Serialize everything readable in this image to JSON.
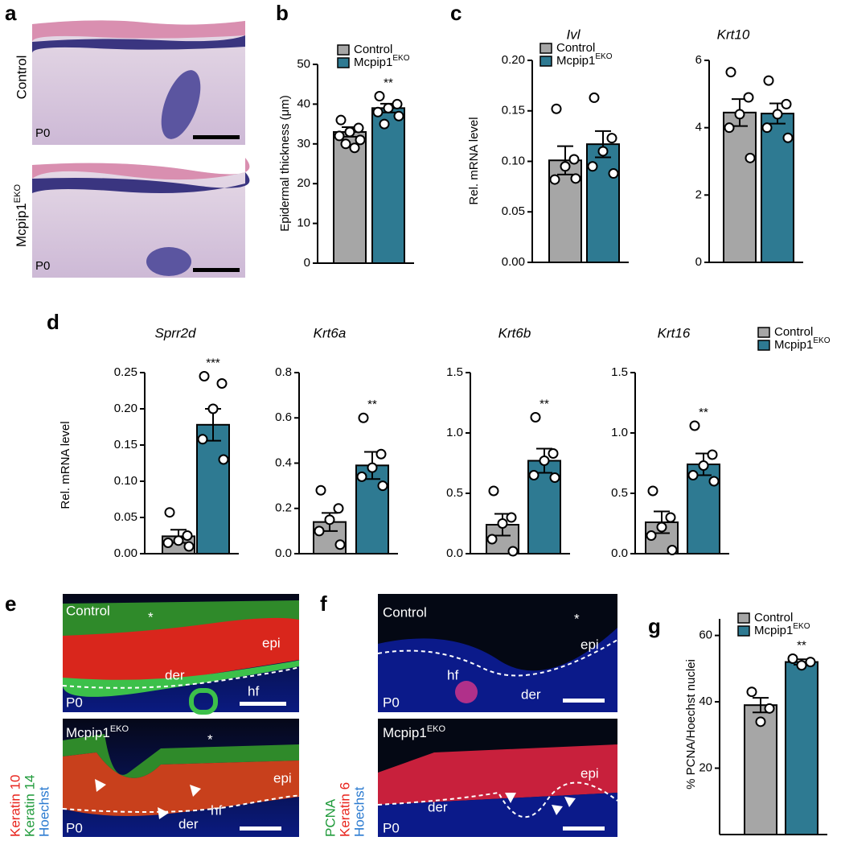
{
  "chart_data": [
    {
      "type": "bar",
      "panel": "b",
      "ylabel": "Epidermal thickness (μm)",
      "ylim": [
        0,
        50
      ],
      "yticks": [
        0,
        10,
        20,
        30,
        40,
        50
      ],
      "legend": true,
      "annotation": "**",
      "series": [
        {
          "name": "Control",
          "color": "#a6a6a6",
          "values": [
            33
          ],
          "errors": [
            1.2
          ],
          "points": [
            36,
            34,
            33,
            32,
            31,
            30,
            29
          ]
        },
        {
          "name": "Mcpip1",
          "superscript": "EKO",
          "color": "#2e7a92",
          "values": [
            39
          ],
          "errors": [
            1.1
          ],
          "points": [
            42,
            40,
            39,
            38,
            37,
            35
          ]
        }
      ]
    },
    {
      "type": "bar",
      "panel": "c",
      "title": "Ivl",
      "ylabel": "Rel. mRNA level",
      "ylim": [
        0,
        0.2
      ],
      "yticks": [
        {
          "value": 0,
          "label": "0.00"
        },
        0.05,
        {
          "value": 0.1,
          "label": "0.10"
        },
        0.15,
        {
          "value": 0.2,
          "label": "0.20"
        }
      ],
      "legend": true,
      "series": [
        {
          "name": "Control",
          "color": "#a6a6a6",
          "values": [
            0.101
          ],
          "errors": [
            0.014
          ],
          "points": [
            0.152,
            0.102,
            0.095,
            0.082,
            0.083
          ]
        },
        {
          "name": "Mcpip1",
          "superscript": "EKO",
          "color": "#2e7a92",
          "values": [
            0.117
          ],
          "errors": [
            0.013
          ],
          "points": [
            0.163,
            0.123,
            0.11,
            0.095,
            0.088
          ]
        }
      ]
    },
    {
      "type": "bar",
      "title": "Krt10",
      "ylim": [
        0,
        6
      ],
      "yticks": [
        0,
        2,
        4,
        6
      ],
      "legend": false,
      "series": [
        {
          "name": "Control",
          "color": "#a6a6a6",
          "values": [
            4.45
          ],
          "errors": [
            0.4
          ],
          "points": [
            5.65,
            4.9,
            4.4,
            4.0,
            3.1
          ]
        },
        {
          "name": "Mcpip1",
          "superscript": "EKO",
          "color": "#2e7a92",
          "values": [
            4.42
          ],
          "errors": [
            0.3
          ],
          "points": [
            5.4,
            4.7,
            4.4,
            4.0,
            3.7
          ]
        }
      ]
    },
    {
      "type": "bar",
      "panel": "d",
      "title": "Sprr2d",
      "ylabel": "Rel. mRNA level",
      "ylim": [
        0,
        0.25
      ],
      "yticks": [
        {
          "value": 0,
          "label": "0.00"
        },
        0.05,
        {
          "value": 0.1,
          "label": "0.10"
        },
        0.15,
        {
          "value": 0.2,
          "label": "0.20"
        },
        0.25
      ],
      "legend": false,
      "annotation": "***",
      "series": [
        {
          "name": "Control",
          "color": "#a6a6a6",
          "values": [
            0.024
          ],
          "errors": [
            0.009
          ],
          "points": [
            0.057,
            0.025,
            0.018,
            0.015,
            0.01
          ]
        },
        {
          "name": "Mcpip1",
          "superscript": "EKO",
          "color": "#2e7a92",
          "values": [
            0.178
          ],
          "errors": [
            0.022
          ],
          "points": [
            0.245,
            0.235,
            0.2,
            0.158,
            0.13
          ]
        }
      ]
    },
    {
      "type": "bar",
      "title": "Krt6a",
      "ylim": [
        0,
        0.8
      ],
      "yticks": [
        {
          "value": 0,
          "label": "0.0"
        },
        0.2,
        0.4,
        0.6,
        0.8
      ],
      "legend": false,
      "annotation": "**",
      "series": [
        {
          "name": "Control",
          "color": "#a6a6a6",
          "values": [
            0.14
          ],
          "errors": [
            0.04
          ],
          "points": [
            0.28,
            0.2,
            0.15,
            0.1,
            0.04
          ]
        },
        {
          "name": "Mcpip1",
          "superscript": "EKO",
          "color": "#2e7a92",
          "values": [
            0.39
          ],
          "errors": [
            0.06
          ],
          "points": [
            0.6,
            0.44,
            0.38,
            0.34,
            0.3
          ]
        }
      ]
    },
    {
      "type": "bar",
      "title": "Krt6b",
      "ylim": [
        0,
        1.5
      ],
      "yticks": [
        {
          "value": 0,
          "label": "0.0"
        },
        0.5,
        {
          "value": 1,
          "label": "1.0"
        },
        1.5
      ],
      "legend": false,
      "annotation": "**",
      "series": [
        {
          "name": "Control",
          "color": "#a6a6a6",
          "values": [
            0.24
          ],
          "errors": [
            0.09
          ],
          "points": [
            0.52,
            0.3,
            0.25,
            0.12,
            0.02
          ]
        },
        {
          "name": "Mcpip1",
          "superscript": "EKO",
          "color": "#2e7a92",
          "values": [
            0.77
          ],
          "errors": [
            0.1
          ],
          "points": [
            1.13,
            0.83,
            0.77,
            0.65,
            0.63
          ]
        }
      ]
    },
    {
      "type": "bar",
      "title": "Krt16",
      "ylim": [
        0,
        1.5
      ],
      "yticks": [
        {
          "value": 0,
          "label": "0.0"
        },
        0.5,
        {
          "value": 1,
          "label": "1.0"
        },
        1.5
      ],
      "legend": true,
      "annotation": "**",
      "series": [
        {
          "name": "Control",
          "color": "#a6a6a6",
          "values": [
            0.26
          ],
          "errors": [
            0.09
          ],
          "points": [
            0.52,
            0.3,
            0.22,
            0.15,
            0.03
          ]
        },
        {
          "name": "Mcpip1",
          "superscript": "EKO",
          "color": "#2e7a92",
          "values": [
            0.74
          ],
          "errors": [
            0.09
          ],
          "points": [
            1.06,
            0.82,
            0.73,
            0.65,
            0.6
          ]
        }
      ]
    },
    {
      "type": "bar",
      "panel": "g",
      "ylabel": "% PCNA/Hoechst nuclei",
      "ylim": [
        0,
        65
      ],
      "yticks": [
        20,
        40,
        60
      ],
      "legend": true,
      "annotation": "**",
      "series": [
        {
          "name": "Control",
          "color": "#a6a6a6",
          "values": [
            39
          ],
          "errors": [
            2.2
          ],
          "points": [
            43,
            38,
            34
          ]
        },
        {
          "name": "Mcpip1",
          "superscript": "EKO",
          "color": "#2e7a92",
          "values": [
            52
          ],
          "errors": [
            0.8
          ],
          "points": [
            53,
            52,
            51
          ]
        }
      ]
    }
  ],
  "figure": {
    "a": {
      "letter": "a",
      "top": {
        "label": "Control",
        "stage": "P0"
      },
      "bottom": {
        "label": "Mcpip1",
        "label_sup": "EKO",
        "stage": "P0"
      }
    },
    "e": {
      "letter": "e",
      "top": {
        "label": "Control",
        "star": "*",
        "tags": [
          "epi",
          "der",
          "hf"
        ],
        "stage": "P0"
      },
      "bottom": {
        "label": "Mcpip1",
        "label_sup": "EKO",
        "star": "*",
        "tags": [
          "epi",
          "der",
          "hf"
        ],
        "stage": "P0"
      },
      "stains": [
        "Keratin 10",
        "Keratin 14",
        "Hoechst"
      ]
    },
    "f": {
      "letter": "f",
      "top": {
        "label": "Control",
        "star": "*",
        "tags": [
          "epi",
          "hf",
          "der"
        ],
        "stage": "P0"
      },
      "bottom": {
        "label": "Mcpip1",
        "label_sup": "EKO",
        "tags": [
          "epi",
          "der"
        ],
        "stage": "P0"
      },
      "stains": [
        "PCNA",
        "Keratin 6",
        "Hoechst"
      ]
    }
  }
}
